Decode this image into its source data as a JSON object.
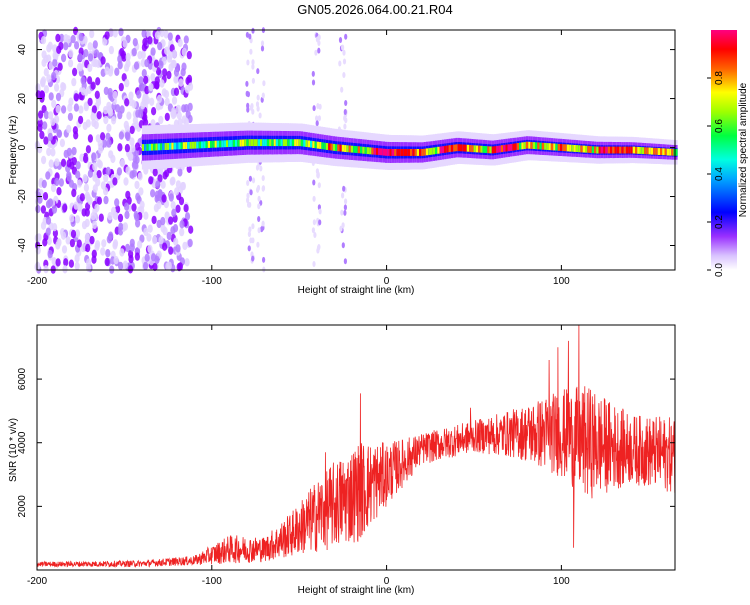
{
  "title": "GN05.2026.064.00.21.R04",
  "chart_data": [
    {
      "type": "heatmap",
      "title": "GN05.2026.064.00.21.R04",
      "xlabel": "Height of straight line (km)",
      "ylabel": "Frequency (Hz)",
      "xlim": [
        -200,
        165
      ],
      "ylim": [
        -50,
        48
      ],
      "xticks": [
        -200,
        -100,
        0,
        100
      ],
      "yticks": [
        40,
        20,
        0,
        -20,
        -40
      ],
      "colorbar": {
        "label": "Normalized spectral amplitude",
        "range": [
          0,
          1
        ],
        "ticks": [
          0.0,
          0.2,
          0.4,
          0.6,
          0.8
        ],
        "tick_labels": [
          "0.0",
          "0.2",
          "0.4",
          "0.6",
          "0.8"
        ],
        "colors": [
          "#ffffff",
          "#c8a0ff",
          "#8a00ff",
          "#0000ff",
          "#00d8ff",
          "#00ff40",
          "#ffff00",
          "#ff6000",
          "#ff0000",
          "#ff0090"
        ]
      },
      "noise_region_km": [
        -200,
        -112
      ],
      "signal_band": {
        "start_km": -140,
        "center_freq_hz": [
          {
            "x": -140,
            "y": 0
          },
          {
            "x": -110,
            "y": 1
          },
          {
            "x": -80,
            "y": 2
          },
          {
            "x": -50,
            "y": 2
          },
          {
            "x": -30,
            "y": 0
          },
          {
            "x": 0,
            "y": -2
          },
          {
            "x": 20,
            "y": -2
          },
          {
            "x": 40,
            "y": 0
          },
          {
            "x": 60,
            "y": -1
          },
          {
            "x": 80,
            "y": 1
          },
          {
            "x": 100,
            "y": 0
          },
          {
            "x": 120,
            "y": -1
          },
          {
            "x": 140,
            "y": -1
          },
          {
            "x": 165,
            "y": -2
          }
        ]
      }
    },
    {
      "type": "line",
      "xlabel": "Height of straight line (km)",
      "ylabel": "SNR (10 * v/v)",
      "xlim": [
        -200,
        165
      ],
      "ylim": [
        0,
        7700
      ],
      "xticks": [
        -200,
        -100,
        0,
        100
      ],
      "yticks": [
        2000,
        4000,
        6000
      ],
      "color": "#ee2222",
      "envelope": [
        {
          "x": -200,
          "mean": 180,
          "amp": 80
        },
        {
          "x": -140,
          "mean": 200,
          "amp": 100
        },
        {
          "x": -110,
          "mean": 300,
          "amp": 150
        },
        {
          "x": -90,
          "mean": 650,
          "amp": 450
        },
        {
          "x": -70,
          "mean": 650,
          "amp": 400
        },
        {
          "x": -55,
          "mean": 1100,
          "amp": 700
        },
        {
          "x": -35,
          "mean": 1900,
          "amp": 1300
        },
        {
          "x": -15,
          "mean": 2500,
          "amp": 1600
        },
        {
          "x": 0,
          "mean": 3000,
          "amp": 1000
        },
        {
          "x": 20,
          "mean": 3800,
          "amp": 500
        },
        {
          "x": 50,
          "mean": 4200,
          "amp": 500
        },
        {
          "x": 75,
          "mean": 4300,
          "amp": 800
        },
        {
          "x": 100,
          "mean": 4300,
          "amp": 1400
        },
        {
          "x": 115,
          "mean": 4000,
          "amp": 1800
        },
        {
          "x": 140,
          "mean": 3800,
          "amp": 1100
        },
        {
          "x": 165,
          "mean": 3600,
          "amp": 1200
        }
      ],
      "peaks": [
        {
          "x": -15,
          "y": 5550
        },
        {
          "x": 93,
          "y": 6600
        },
        {
          "x": 98,
          "y": 7000
        },
        {
          "x": 104,
          "y": 7200
        },
        {
          "x": 110,
          "y": 7700
        },
        {
          "x": 107,
          "y": 700
        },
        {
          "x": 48,
          "y": 5100
        },
        {
          "x": -35,
          "y": 3700
        }
      ]
    }
  ]
}
